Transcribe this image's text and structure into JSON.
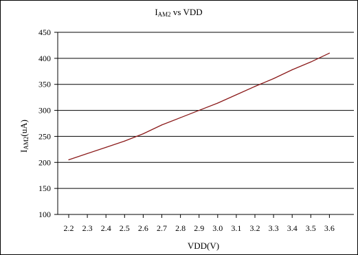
{
  "chart_data": {
    "type": "line",
    "title": {
      "main": "I",
      "subscript": "AM2",
      "rest": " vs VDD"
    },
    "xlabel": "VDD(V)",
    "ylabel": {
      "main": "I",
      "subscript": "AM2",
      "rest": "(uA)"
    },
    "x": [
      2.2,
      2.3,
      2.4,
      2.5,
      2.6,
      2.7,
      2.8,
      2.9,
      3.0,
      3.1,
      3.2,
      3.3,
      3.4,
      3.5,
      3.6
    ],
    "x_tick_labels": [
      "2.2",
      "2.3",
      "2.4",
      "2.5",
      "2.6",
      "2.7",
      "2.8",
      "2.9",
      "3.0",
      "3.1",
      "3.2",
      "3.3",
      "3.4",
      "3.5",
      "3.6"
    ],
    "y_ticks": [
      100,
      150,
      200,
      250,
      300,
      350,
      400,
      450
    ],
    "y_tick_labels": [
      "100",
      "150",
      "200",
      "250",
      "300",
      "350",
      "400",
      "450"
    ],
    "ylim": [
      100,
      450
    ],
    "grid": "horizontal",
    "legend": "none",
    "series": [
      {
        "values": [
          205,
          217,
          229,
          241,
          255,
          272,
          286,
          300,
          314,
          330,
          346,
          361,
          378,
          393,
          410
        ],
        "color": "#8b1a1a"
      }
    ]
  }
}
